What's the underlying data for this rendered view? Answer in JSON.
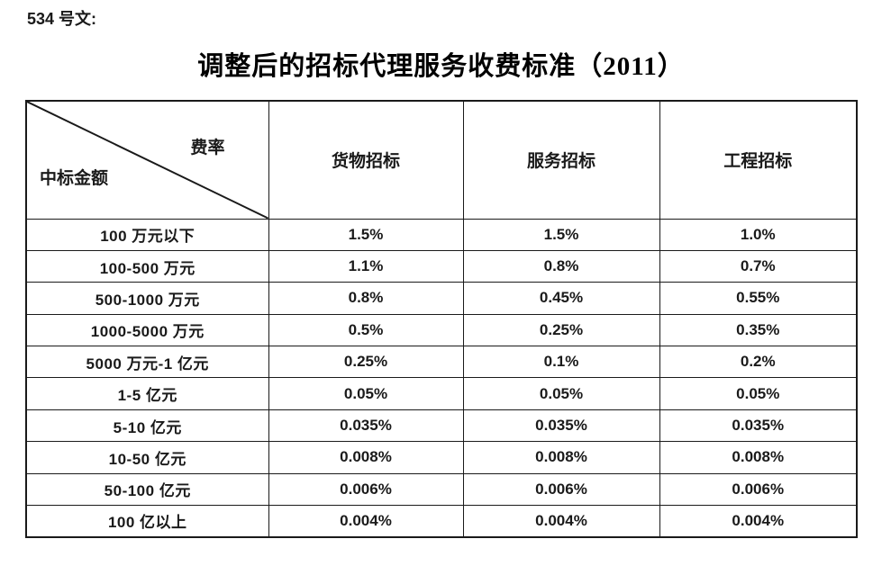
{
  "doc": {
    "doc_ref": "534 号文:",
    "title": "调整后的招标代理服务收费标准（2011）"
  },
  "table": {
    "corner": {
      "top_right": "费率",
      "bottom_left": "中标金额"
    },
    "columns": [
      "货物招标",
      "服务招标",
      "工程招标"
    ],
    "rows": [
      {
        "label": "100 万元以下",
        "values": [
          "1.5%",
          "1.5%",
          "1.0%"
        ]
      },
      {
        "label": "100-500 万元",
        "values": [
          "1.1%",
          "0.8%",
          "0.7%"
        ]
      },
      {
        "label": "500-1000 万元",
        "values": [
          "0.8%",
          "0.45%",
          "0.55%"
        ]
      },
      {
        "label": "1000-5000 万元",
        "values": [
          "0.5%",
          "0.25%",
          "0.35%"
        ]
      },
      {
        "label": "5000 万元-1 亿元",
        "values": [
          "0.25%",
          "0.1%",
          "0.2%"
        ]
      },
      {
        "label": "1-5 亿元",
        "values": [
          "0.05%",
          "0.05%",
          "0.05%"
        ]
      },
      {
        "label": "5-10 亿元",
        "values": [
          "0.035%",
          "0.035%",
          "0.035%"
        ]
      },
      {
        "label": "10-50 亿元",
        "values": [
          "0.008%",
          "0.008%",
          "0.008%"
        ]
      },
      {
        "label": "50-100 亿元",
        "values": [
          "0.006%",
          "0.006%",
          "0.006%"
        ]
      },
      {
        "label": "100 亿以上",
        "values": [
          "0.004%",
          "0.004%",
          "0.004%"
        ]
      }
    ]
  },
  "colors": {
    "text": "#1a1a1a",
    "border": "#1a1a1a",
    "background": "#ffffff"
  }
}
